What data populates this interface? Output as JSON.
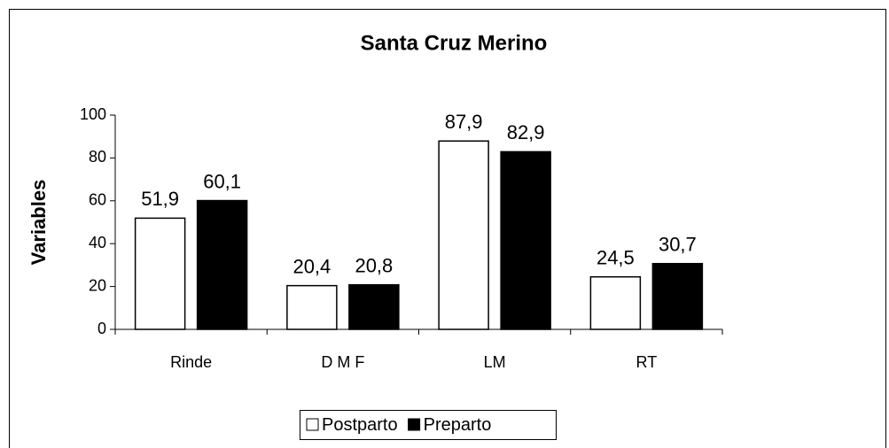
{
  "chart_data": {
    "type": "bar",
    "title": "Santa Cruz Merino",
    "y_label": "Variables",
    "categories": [
      "Rinde",
      "D M F",
      "LM",
      "RT"
    ],
    "series": [
      {
        "name": "Postparto",
        "color": "#ffffff",
        "values": [
          51.9,
          20.4,
          87.9,
          24.5
        ],
        "value_labels": [
          "51,9",
          "20,4",
          "87,9",
          "24,5"
        ]
      },
      {
        "name": "Preparto",
        "color": "#000000",
        "values": [
          60.1,
          20.8,
          82.9,
          30.7
        ],
        "value_labels": [
          "60,1",
          "20,8",
          "82,9",
          "30,7"
        ]
      }
    ],
    "ylim": [
      0,
      100
    ],
    "yticks": [
      0,
      20,
      40,
      60,
      80,
      100
    ],
    "legend": "bottom"
  }
}
